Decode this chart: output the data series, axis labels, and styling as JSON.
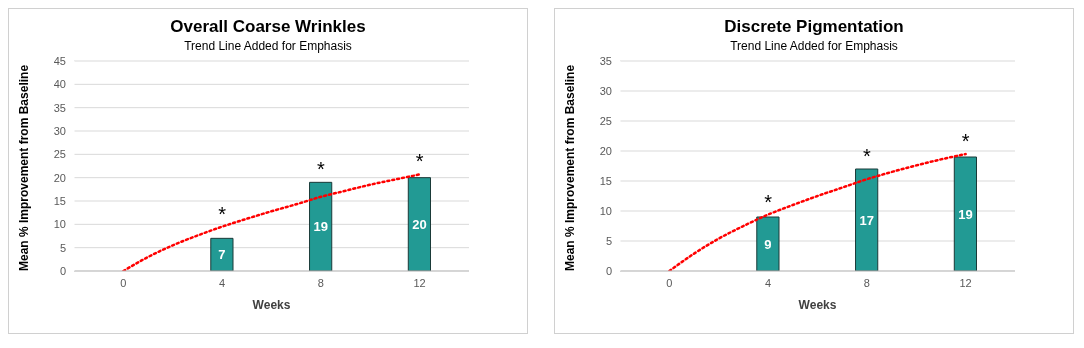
{
  "chart_data": [
    {
      "type": "bar",
      "title": "Overall Coarse Wrinkles",
      "subtitle": "Trend Line Added for Emphasis",
      "xlabel": "Weeks",
      "ylabel": "Mean % Improvement from Baseline",
      "x": [
        4,
        8,
        12
      ],
      "xlim": [
        -2,
        14
      ],
      "xticks": [
        0,
        4,
        8,
        12
      ],
      "ylim": [
        0,
        45
      ],
      "yticks": [
        0,
        5,
        10,
        15,
        20,
        25,
        30,
        35,
        40,
        45
      ],
      "grid": "y",
      "legend": false,
      "series": [
        {
          "color": "#229a94",
          "values": [
            7,
            19,
            20
          ],
          "value_labels": [
            "7",
            "19",
            "20"
          ]
        },
        {
          "type": "line",
          "color": "#ff0000",
          "line_style": "dotted",
          "marker": "none",
          "x": [
            0,
            1,
            2,
            3,
            4,
            5,
            6,
            7,
            8,
            9,
            10,
            11,
            12
          ],
          "values": [
            0,
            3,
            5.5,
            7.6,
            9.5,
            11.2,
            12.8,
            14.3,
            15.9,
            17.2,
            18.5,
            19.6,
            20.7
          ]
        }
      ],
      "annotations": [
        {
          "text": "*",
          "x": 4,
          "y": 9.5
        },
        {
          "text": "*",
          "x": 8,
          "y": 19
        },
        {
          "text": "*",
          "x": 12,
          "y": 20.7
        }
      ]
    },
    {
      "type": "bar",
      "title": "Discrete Pigmentation",
      "subtitle": "Trend Line Added for Emphasis",
      "xlabel": "Weeks",
      "ylabel": "Mean % Improvement from Baseline",
      "x": [
        4,
        8,
        12
      ],
      "xlim": [
        -2,
        14
      ],
      "xticks": [
        0,
        4,
        8,
        12
      ],
      "ylim": [
        0,
        35
      ],
      "yticks": [
        0,
        5,
        10,
        15,
        20,
        25,
        30,
        35
      ],
      "grid": "y",
      "legend": false,
      "series": [
        {
          "color": "#229a94",
          "values": [
            9,
            17,
            19
          ],
          "value_labels": [
            "9",
            "17",
            "19"
          ]
        },
        {
          "type": "line",
          "color": "#ff0000",
          "line_style": "dotted",
          "marker": "none",
          "x": [
            0,
            1,
            2,
            3,
            4,
            5,
            6,
            7,
            8,
            9,
            10,
            11,
            12
          ],
          "values": [
            0,
            2.9,
            5.4,
            7.5,
            9.4,
            11,
            12.5,
            13.9,
            15.3,
            16.5,
            17.6,
            18.6,
            19.5
          ]
        }
      ],
      "annotations": [
        {
          "text": "*",
          "x": 4,
          "y": 9.4
        },
        {
          "text": "*",
          "x": 8,
          "y": 17
        },
        {
          "text": "*",
          "x": 12,
          "y": 19.5
        }
      ]
    }
  ]
}
